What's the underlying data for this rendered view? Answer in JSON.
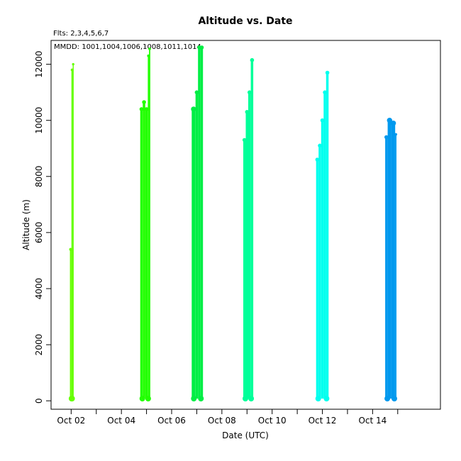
{
  "chart_data": {
    "type": "scatter",
    "title": "Altitude  vs. Date",
    "subtitle": "Flts: 2,3,4,5,6,7",
    "annotation": "MMDD: 1001,1004,1006,1008,1011,1014",
    "xlabel": "Date (UTC)",
    "ylabel": "Altitude (m)",
    "x_unit": "days in October",
    "xlim": [
      1.2,
      16.7
    ],
    "ylim": [
      -300,
      12850
    ],
    "x_ticks": [
      {
        "value": 2,
        "label": "Oct 02"
      },
      {
        "value": 4,
        "label": "Oct 04"
      },
      {
        "value": 6,
        "label": "Oct 06"
      },
      {
        "value": 8,
        "label": "Oct 08"
      },
      {
        "value": 10,
        "label": "Oct 10"
      },
      {
        "value": 12,
        "label": "Oct 12"
      },
      {
        "value": 14,
        "label": "Oct 14"
      }
    ],
    "x_minor_ticks": [
      3,
      5,
      7,
      9,
      11,
      13,
      15
    ],
    "y_ticks": [
      0,
      2000,
      4000,
      6000,
      8000,
      10000,
      12000
    ],
    "series": [
      {
        "color": "#66ff00",
        "x_range": [
          1.95,
          2.1
        ],
        "segments": [
          [
            1.95,
            2.01,
            5400
          ],
          [
            2.01,
            2.06,
            11800
          ],
          [
            2.06,
            2.1,
            12000
          ]
        ]
      },
      {
        "color": "#22ff00",
        "x_range": [
          4.75,
          5.15
        ],
        "segments": [
          [
            4.75,
            4.85,
            10400
          ],
          [
            4.85,
            4.95,
            10650
          ],
          [
            4.95,
            5.05,
            10400
          ],
          [
            5.05,
            5.1,
            12300
          ],
          [
            5.1,
            5.15,
            12550
          ]
        ]
      },
      {
        "color": "#00ee44",
        "x_range": [
          6.8,
          7.25
        ],
        "segments": [
          [
            6.8,
            6.95,
            10400
          ],
          [
            6.95,
            7.05,
            11000
          ],
          [
            7.05,
            7.15,
            12600
          ],
          [
            7.15,
            7.25,
            12600
          ]
        ]
      },
      {
        "color": "#00ff99",
        "x_range": [
          8.85,
          9.25
        ],
        "segments": [
          [
            8.85,
            8.95,
            9300
          ],
          [
            8.95,
            9.05,
            10300
          ],
          [
            9.05,
            9.15,
            11000
          ],
          [
            9.15,
            9.25,
            12150
          ]
        ]
      },
      {
        "color": "#00ffee",
        "x_range": [
          11.75,
          12.25
        ],
        "segments": [
          [
            11.75,
            11.85,
            8600
          ],
          [
            11.85,
            11.95,
            9100
          ],
          [
            11.95,
            12.05,
            10000
          ],
          [
            12.05,
            12.15,
            11000
          ],
          [
            12.15,
            12.25,
            11700
          ]
        ]
      },
      {
        "color": "#0099ee",
        "x_range": [
          14.5,
          14.95
        ],
        "segments": [
          [
            14.5,
            14.6,
            9400
          ],
          [
            14.6,
            14.75,
            10000
          ],
          [
            14.75,
            14.9,
            9900
          ],
          [
            14.9,
            14.95,
            9500
          ]
        ]
      }
    ]
  }
}
